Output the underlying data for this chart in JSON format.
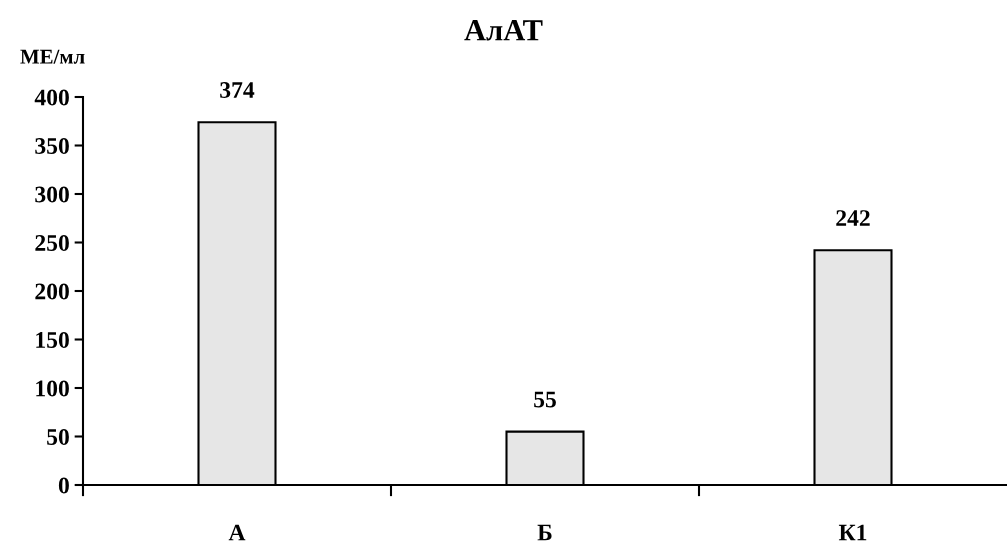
{
  "chart_data": {
    "type": "bar",
    "title": "АлАТ",
    "ylabel": "МЕ/мл",
    "categories": [
      "А",
      "Б",
      "К1"
    ],
    "values": [
      374,
      55,
      242
    ],
    "color": "#e6e6e6",
    "ylim": [
      0,
      400
    ],
    "yticks": [
      0,
      50,
      100,
      150,
      200,
      250,
      300,
      350,
      400
    ],
    "data_labels": true,
    "grid": false,
    "legend": false
  }
}
